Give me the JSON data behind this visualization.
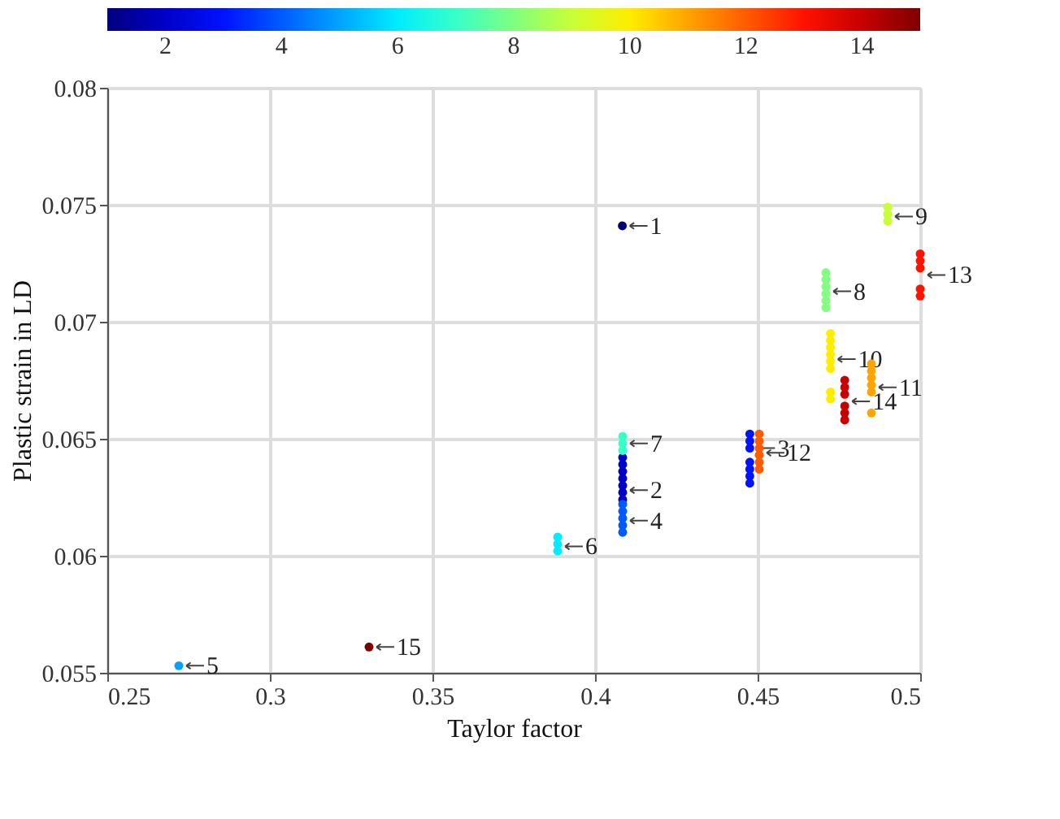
{
  "chart_data": {
    "type": "scatter",
    "xlabel": "Taylor factor",
    "ylabel": "Plastic strain in LD",
    "xlim": [
      0.25,
      0.5
    ],
    "xticks": [
      0.25,
      0.3,
      0.35,
      0.4,
      0.45,
      0.5
    ],
    "ylim": [
      0.055,
      0.08
    ],
    "yticks": [
      0.055,
      0.06,
      0.065,
      0.07,
      0.075,
      0.08
    ],
    "grid": true,
    "marker": "circle",
    "clim": [
      1,
      15
    ],
    "cticks": [
      2,
      4,
      6,
      8,
      10,
      12,
      14
    ],
    "series": [
      {
        "x": [
          0.4084,
          0.4085,
          0.4085,
          0.4085,
          0.4085,
          0.4085,
          0.4085,
          0.4085,
          0.4476,
          0.4476,
          0.4476,
          0.4476,
          0.4476,
          0.4476,
          0.4476,
          0.4085,
          0.4085,
          0.4085,
          0.4085,
          0.4085,
          0.272,
          0.3885,
          0.3885,
          0.3885,
          0.4085,
          0.4085,
          0.4085,
          0.471,
          0.471,
          0.471,
          0.471,
          0.471,
          0.471,
          0.49,
          0.49,
          0.49,
          0.4724,
          0.4724,
          0.4724,
          0.4724,
          0.4724,
          0.4724,
          0.4724,
          0.4724,
          0.485,
          0.485,
          0.485,
          0.485,
          0.485,
          0.485,
          0.4505,
          0.4505,
          0.4505,
          0.4505,
          0.4505,
          0.4505,
          0.5,
          0.5,
          0.5,
          0.5,
          0.5,
          0.4768,
          0.4768,
          0.4768,
          0.4768,
          0.4768,
          0.4768,
          0.3305
        ],
        "values": [
          0.0741,
          0.0642,
          0.0639,
          0.0636,
          0.0633,
          0.063,
          0.0627,
          0.0624,
          0.0652,
          0.0649,
          0.0646,
          0.064,
          0.0637,
          0.0634,
          0.0631,
          0.0622,
          0.0619,
          0.0616,
          0.0613,
          0.061,
          0.0553,
          0.0608,
          0.0605,
          0.0602,
          0.0651,
          0.0648,
          0.0645,
          0.0721,
          0.0718,
          0.0715,
          0.0712,
          0.0709,
          0.0706,
          0.0749,
          0.0746,
          0.0743,
          0.0695,
          0.0692,
          0.0689,
          0.0686,
          0.0683,
          0.068,
          0.067,
          0.0667,
          0.0682,
          0.0679,
          0.0676,
          0.0673,
          0.067,
          0.0661,
          0.0652,
          0.0649,
          0.0646,
          0.0643,
          0.064,
          0.0637,
          0.0729,
          0.0726,
          0.0723,
          0.0714,
          0.0711,
          0.0675,
          0.0672,
          0.0669,
          0.0664,
          0.0661,
          0.0658,
          0.0561
        ],
        "cvalues": [
          1,
          2,
          2,
          2,
          2,
          2,
          2,
          2,
          3,
          3,
          3,
          3,
          3,
          3,
          3,
          4,
          4,
          4,
          4,
          4,
          5,
          6,
          6,
          6,
          7,
          7,
          7,
          8,
          8,
          8,
          8,
          8,
          8,
          9,
          9,
          9,
          10,
          10,
          10,
          10,
          10,
          10,
          10,
          10,
          11,
          11,
          11,
          11,
          11,
          11,
          12,
          12,
          12,
          12,
          12,
          12,
          13,
          13,
          13,
          13,
          13,
          14,
          14,
          14,
          14,
          14,
          14,
          15
        ]
      }
    ],
    "annotations": [
      {
        "text": "1",
        "x": 0.4084,
        "y": 0.0741
      },
      {
        "text": "2",
        "x": 0.4085,
        "y": 0.0628
      },
      {
        "text": "3",
        "x": 0.4476,
        "y": 0.0646
      },
      {
        "text": "4",
        "x": 0.4085,
        "y": 0.0615
      },
      {
        "text": "5",
        "x": 0.272,
        "y": 0.0553
      },
      {
        "text": "6",
        "x": 0.3885,
        "y": 0.0604
      },
      {
        "text": "7",
        "x": 0.4085,
        "y": 0.0648
      },
      {
        "text": "8",
        "x": 0.471,
        "y": 0.0713
      },
      {
        "text": "9",
        "x": 0.49,
        "y": 0.0745
      },
      {
        "text": "10",
        "x": 0.4724,
        "y": 0.0684
      },
      {
        "text": "11",
        "x": 0.485,
        "y": 0.0672
      },
      {
        "text": "12",
        "x": 0.4505,
        "y": 0.0644
      },
      {
        "text": "13",
        "x": 0.5,
        "y": 0.072
      },
      {
        "text": "14",
        "x": 0.4768,
        "y": 0.0666
      },
      {
        "text": "15",
        "x": 0.3305,
        "y": 0.0561
      }
    ]
  }
}
